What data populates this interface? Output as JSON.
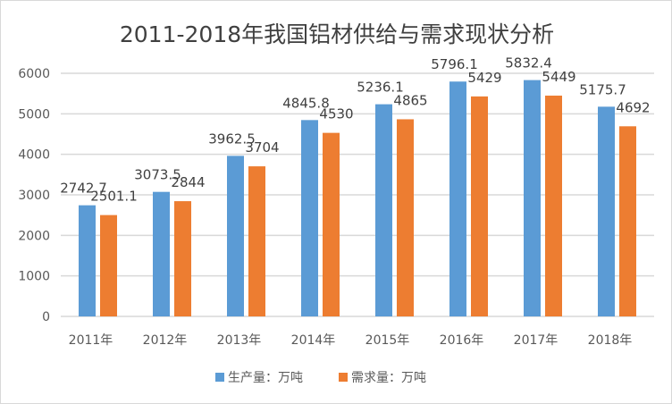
{
  "chart_data": {
    "type": "bar",
    "title": "2011-2018年我国铝材供给与需求现状分析",
    "categories": [
      "2011年",
      "2012年",
      "2013年",
      "2014年",
      "2015年",
      "2016年",
      "2017年",
      "2018年"
    ],
    "series": [
      {
        "name": "生产量：万吨",
        "color": "#5B9BD5",
        "values": [
          2742.7,
          3073.5,
          3962.5,
          4845.8,
          5236.1,
          5796.1,
          5832.4,
          5175.7
        ]
      },
      {
        "name": "需求量：万吨",
        "color": "#ED7D31",
        "values": [
          2501.1,
          2844,
          3704,
          4530,
          4865,
          5429,
          5449,
          4692
        ]
      }
    ],
    "ylim": [
      0,
      6000
    ],
    "yticks": [
      0,
      1000,
      2000,
      3000,
      4000,
      5000,
      6000
    ],
    "grid": true,
    "legend": "bottom",
    "xlabel": "",
    "ylabel": ""
  }
}
